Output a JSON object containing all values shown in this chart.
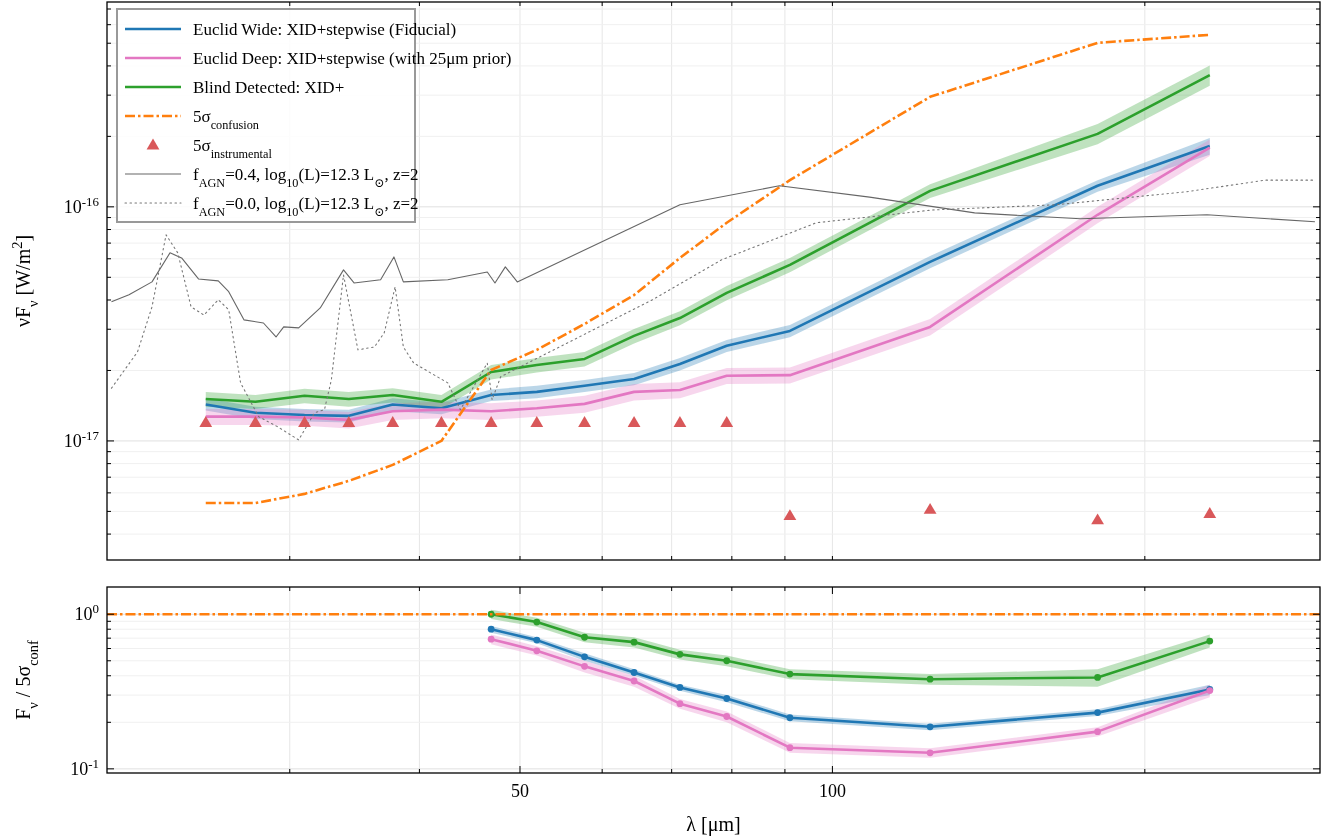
{
  "chart_data": [
    {
      "type": "line",
      "ylabel": "νF$_{ν}$ [W/m$^{2}$]",
      "log": "xy",
      "grid": true,
      "legend": "top left",
      "tick_labels": "y",
      "xlim": [
        20,
        295
      ],
      "xticks": [
        {
          "value": 30,
          "label": null
        },
        {
          "value": 40,
          "label": null
        },
        {
          "value": 50,
          "label": null
        },
        {
          "value": 60,
          "label": null
        },
        {
          "value": 70,
          "label": null
        },
        {
          "value": 80,
          "label": null
        },
        {
          "value": 90,
          "label": null
        },
        {
          "value": 100,
          "label": null
        },
        {
          "value": 200,
          "label": null
        }
      ],
      "ylim": [
        3.1e-18,
        7.5e-16
      ],
      "yticks": [
        {
          "value": 4e-18,
          "label": null
        },
        {
          "value": 5e-18,
          "label": null
        },
        {
          "value": 6e-18,
          "label": null
        },
        {
          "value": 7e-18,
          "label": null
        },
        {
          "value": 8e-18,
          "label": null
        },
        {
          "value": 9e-18,
          "label": null
        },
        {
          "value": 1e-17,
          "label": "10$^{-17}$"
        },
        {
          "value": 2e-17,
          "label": null
        },
        {
          "value": 3e-17,
          "label": null
        },
        {
          "value": 4e-17,
          "label": null
        },
        {
          "value": 5e-17,
          "label": null
        },
        {
          "value": 6e-17,
          "label": null
        },
        {
          "value": 7e-17,
          "label": null
        },
        {
          "value": 8e-17,
          "label": null
        },
        {
          "value": 9e-17,
          "label": null
        },
        {
          "value": 1e-16,
          "label": "10$^{-16}$"
        },
        {
          "value": 2e-16,
          "label": null
        },
        {
          "value": 3e-16,
          "label": null
        },
        {
          "value": 4e-16,
          "label": null
        },
        {
          "value": 5e-16,
          "label": null
        },
        {
          "value": 6e-16,
          "label": null
        },
        {
          "value": 7e-16,
          "label": null
        }
      ],
      "x": [
        24.9,
        27.8,
        31.0,
        34.2,
        37.7,
        42.0,
        46.9,
        51.9,
        57.7,
        64.4,
        71.3,
        79.1,
        91.0,
        124.2,
        180.1,
        231
      ],
      "series": [
        {
          "name": "Euclid Wide: XID+stepwise (Fiducial)",
          "color": "#1f77b4",
          "values": [
            1.43e-17,
            1.32e-17,
            1.29e-17,
            1.28e-17,
            1.43e-17,
            1.38e-17,
            1.57e-17,
            1.62e-17,
            1.72e-17,
            1.84e-17,
            2.13e-17,
            2.55e-17,
            2.95e-17,
            5.82e-17,
            1.23e-16,
            1.82e-16
          ],
          "lower": [
            1.35e-17,
            1.24e-17,
            1.21e-17,
            1.2e-17,
            1.34e-17,
            1.3e-17,
            1.48e-17,
            1.52e-17,
            1.62e-17,
            1.73e-17,
            2e-17,
            2.4e-17,
            2.77e-17,
            5.47e-17,
            1.16e-16,
            1.67e-16
          ],
          "upper": [
            1.52e-17,
            1.4e-17,
            1.37e-17,
            1.36e-17,
            1.52e-17,
            1.46e-17,
            1.66e-17,
            1.72e-17,
            1.82e-17,
            1.95e-17,
            2.26e-17,
            2.7e-17,
            3.13e-17,
            6.17e-17,
            1.3e-16,
            1.97e-16
          ]
        },
        {
          "name": "Euclid Deep: XID+stepwise (with 25μm prior)",
          "color": "#e377c2",
          "values": [
            1.27e-17,
            1.27e-17,
            1.26e-17,
            1.23e-17,
            1.34e-17,
            1.36e-17,
            1.34e-17,
            1.38e-17,
            1.44e-17,
            1.62e-17,
            1.65e-17,
            1.9e-17,
            1.91e-17,
            3.07e-17,
            9.25e-17,
            1.79e-16
          ],
          "lower": [
            1.17e-17,
            1.17e-17,
            1.16e-17,
            1.13e-17,
            1.23e-17,
            1.25e-17,
            1.23e-17,
            1.27e-17,
            1.32e-17,
            1.49e-17,
            1.52e-17,
            1.75e-17,
            1.76e-17,
            2.82e-17,
            8.5e-17,
            1.65e-16
          ],
          "upper": [
            1.37e-17,
            1.37e-17,
            1.36e-17,
            1.33e-17,
            1.45e-17,
            1.47e-17,
            1.45e-17,
            1.49e-17,
            1.56e-17,
            1.75e-17,
            1.78e-17,
            2.05e-17,
            2.06e-17,
            3.32e-17,
            1e-16,
            1.94e-16
          ]
        },
        {
          "name": "Blind Detected: XID+",
          "color": "#2ca02c",
          "values": [
            1.51e-17,
            1.47e-17,
            1.56e-17,
            1.51e-17,
            1.57e-17,
            1.47e-17,
            1.97e-17,
            2.11e-17,
            2.24e-17,
            2.81e-17,
            3.35e-17,
            4.29e-17,
            5.65e-17,
            1.17e-16,
            2.05e-16,
            3.65e-16
          ],
          "lower": [
            1.4e-17,
            1.37e-17,
            1.45e-17,
            1.4e-17,
            1.46e-17,
            1.37e-17,
            1.83e-17,
            1.96e-17,
            2.08e-17,
            2.61e-17,
            3.12e-17,
            3.99e-17,
            5.25e-17,
            1.09e-16,
            1.85e-16,
            3.29e-16
          ],
          "upper": [
            1.62e-17,
            1.57e-17,
            1.67e-17,
            1.62e-17,
            1.68e-17,
            1.57e-17,
            2.11e-17,
            2.26e-17,
            2.4e-17,
            3.01e-17,
            3.58e-17,
            4.59e-17,
            6.05e-17,
            1.25e-16,
            2.26e-16,
            4.02e-16
          ]
        },
        {
          "name": "5σ$_{confusion}$",
          "color": "#ff7f0e",
          "line_style": "dashdot",
          "values": [
            5.43e-18,
            5.43e-18,
            5.94e-18,
            6.75e-18,
            7.9e-18,
            1e-17,
            2.01e-17,
            2.45e-17,
            3.16e-17,
            4.2e-17,
            6.05e-17,
            8.55e-17,
            1.3e-16,
            2.95e-16,
            5.02e-16,
            5.43e-16
          ]
        },
        {
          "name": "5σ$_{instrumental}$",
          "type": "scatter",
          "marker": "triangle",
          "color": "#d9585a",
          "values": [
            1.2e-17,
            1.2e-17,
            1.2e-17,
            1.2e-17,
            1.2e-17,
            1.2e-17,
            1.2e-17,
            1.2e-17,
            1.2e-17,
            1.2e-17,
            1.2e-17,
            1.2e-17,
            4.8e-18,
            5.1e-18,
            4.6e-18,
            4.9e-18
          ]
        },
        {
          "name": "f$_{AGN}$=0.4, log$_{10}$(L)=12.3 L$_{⊙}$, z=2",
          "color": "#666666",
          "x": [
            20.2,
            21.0,
            22.1,
            23.0,
            23.6,
            24.5,
            25.6,
            26.2,
            27.1,
            28.3,
            29.1,
            29.6,
            30.6,
            32.1,
            33.8,
            34.6,
            36.7,
            37.8,
            38.6,
            42.6,
            46.5,
            47.3,
            48.4,
            49.7,
            71.3,
            88.9,
            108.6,
            137.1,
            173.4,
            229.6,
            291.7
          ],
          "values": [
            3.93e-17,
            4.21e-17,
            4.78e-17,
            6.36e-17,
            6.05e-17,
            4.92e-17,
            4.83e-17,
            4.34e-17,
            3.29e-17,
            3.19e-17,
            2.78e-17,
            3.07e-17,
            3.04e-17,
            3.7e-17,
            5.38e-17,
            4.73e-17,
            4.88e-17,
            6.11e-17,
            4.78e-17,
            4.88e-17,
            5.27e-17,
            4.73e-17,
            5.54e-17,
            4.78e-17,
            1.02e-16,
            1.23e-16,
            1.1e-16,
            9.42e-17,
            8.89e-17,
            9.25e-17,
            8.63e-17
          ]
        },
        {
          "name": "f$_{AGN}$=0.0, log$_{10}$(L)=12.3 L$_{⊙}$, z=2",
          "color": "#777777",
          "line_style": "dotted",
          "x": [
            20.2,
            21.4,
            22.1,
            22.8,
            23.4,
            24.1,
            24.8,
            25.6,
            26.2,
            26.9,
            28.0,
            29.2,
            30.6,
            31.7,
            32.4,
            32.9,
            33.8,
            34.9,
            36.2,
            37.0,
            37.9,
            38.6,
            39.5,
            42.6,
            43.8,
            46.5,
            47.0,
            47.9,
            67.1,
            78.2,
            96.5,
            125.0,
            163.8,
            219.3,
            261.2,
            291.7
          ],
          "values": [
            1.68e-17,
            2.4e-17,
            3.74e-17,
            7.59e-17,
            6.36e-17,
            3.74e-17,
            3.45e-17,
            4.01e-17,
            3.63e-17,
            1.77e-17,
            1.27e-17,
            1.15e-17,
            1.01e-17,
            1.32e-17,
            1.36e-17,
            1.82e-17,
            5.12e-17,
            2.45e-17,
            2.52e-17,
            2.9e-17,
            4.55e-17,
            2.52e-17,
            2.15e-17,
            1.77e-17,
            1.36e-17,
            2.15e-17,
            1.5e-17,
            1.88e-17,
            4.01e-17,
            5.94e-17,
            8.55e-17,
            9.7e-17,
            1.02e-16,
            1.16e-16,
            1.3e-16,
            1.3e-16
          ]
        }
      ]
    },
    {
      "type": "line",
      "ylabel": "F$_{ν}$ / 5σ$_{conf}$",
      "xlabel": "λ [μm]",
      "log": "xy",
      "grid": true,
      "marker": "circle",
      "xlim": [
        20,
        295
      ],
      "xticks": [
        {
          "value": 30,
          "label": null
        },
        {
          "value": 40,
          "label": null
        },
        {
          "value": 50,
          "label": "50"
        },
        {
          "value": 60,
          "label": null
        },
        {
          "value": 70,
          "label": null
        },
        {
          "value": 80,
          "label": null
        },
        {
          "value": 90,
          "label": null
        },
        {
          "value": 100,
          "label": "100"
        },
        {
          "value": 200,
          "label": null
        }
      ],
      "ylim": [
        0.094,
        1.5
      ],
      "yticks": [
        {
          "value": 0.1,
          "label": "10$^{-1}$"
        },
        {
          "value": 0.2,
          "label": null
        },
        {
          "value": 0.3,
          "label": null
        },
        {
          "value": 0.4,
          "label": null
        },
        {
          "value": 0.5,
          "label": null
        },
        {
          "value": 0.6,
          "label": null
        },
        {
          "value": 0.7,
          "label": null
        },
        {
          "value": 0.8,
          "label": null
        },
        {
          "value": 0.9,
          "label": null
        },
        {
          "value": 1,
          "label": "10$^{0}$"
        }
      ],
      "x": [
        46.9,
        51.9,
        57.7,
        64.4,
        71.3,
        79.1,
        91.0,
        124.2,
        180.1,
        231
      ],
      "series": [
        {
          "color": "#1f77b4",
          "values": [
            0.8,
            0.68,
            0.53,
            0.42,
            0.336,
            0.285,
            0.214,
            0.187,
            0.231,
            0.326
          ],
          "lower": [
            0.76,
            0.65,
            0.5,
            0.4,
            0.32,
            0.27,
            0.203,
            0.178,
            0.22,
            0.3
          ],
          "upper": [
            0.84,
            0.71,
            0.56,
            0.44,
            0.35,
            0.3,
            0.225,
            0.196,
            0.243,
            0.35
          ]
        },
        {
          "color": "#e377c2",
          "values": [
            0.69,
            0.58,
            0.46,
            0.37,
            0.264,
            0.218,
            0.137,
            0.127,
            0.174,
            0.321
          ],
          "lower": [
            0.64,
            0.54,
            0.42,
            0.34,
            0.245,
            0.2,
            0.127,
            0.118,
            0.162,
            0.29
          ],
          "upper": [
            0.74,
            0.62,
            0.5,
            0.4,
            0.283,
            0.235,
            0.147,
            0.136,
            0.186,
            0.35
          ]
        },
        {
          "color": "#2ca02c",
          "values": [
            1.0,
            0.89,
            0.71,
            0.66,
            0.55,
            0.5,
            0.41,
            0.38,
            0.39,
            0.67
          ],
          "lower": [
            0.93,
            0.83,
            0.66,
            0.61,
            0.51,
            0.46,
            0.38,
            0.35,
            0.34,
            0.61
          ],
          "upper": [
            1.07,
            0.95,
            0.76,
            0.71,
            0.59,
            0.54,
            0.44,
            0.41,
            0.44,
            0.74
          ]
        }
      ],
      "ref_lines": [
        {
          "axis": "y",
          "value": 1,
          "color": "#ff7f0e",
          "line_style": "dashdot"
        }
      ]
    }
  ]
}
